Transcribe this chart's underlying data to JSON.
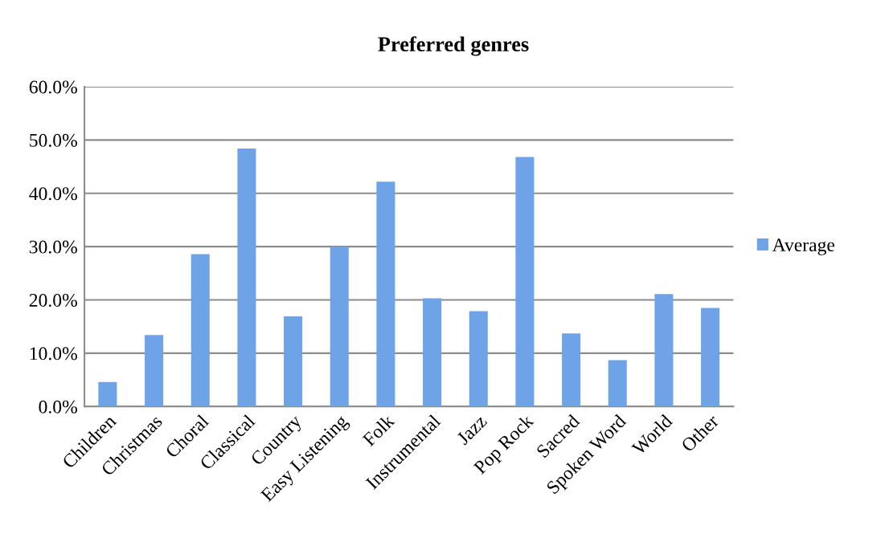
{
  "chart_data": {
    "type": "bar",
    "title": "Preferred genres",
    "categories": [
      "Children",
      "Christmas",
      "Choral",
      "Classical",
      "Country",
      "Easy Listening",
      "Folk",
      "Instrumental",
      "Jazz",
      "Pop Rock",
      "Sacred",
      "Spoken Word",
      "World",
      "Other"
    ],
    "series": [
      {
        "name": "Average",
        "color": "#6fa3e8",
        "values": [
          4.6,
          13.4,
          28.6,
          48.4,
          16.9,
          30.0,
          42.2,
          20.3,
          17.9,
          46.8,
          13.7,
          8.7,
          21.1,
          18.5
        ]
      }
    ],
    "ylim": [
      0,
      60
    ],
    "yticks": [
      {
        "value": 0,
        "label": "0.0%"
      },
      {
        "value": 10,
        "label": "10.0%"
      },
      {
        "value": 20,
        "label": "20.0%"
      },
      {
        "value": 30,
        "label": "30.0%"
      },
      {
        "value": 40,
        "label": "40.0%"
      },
      {
        "value": 50,
        "label": "50.0%"
      },
      {
        "value": 60,
        "label": "60.0%"
      }
    ],
    "grid": "y",
    "legend": "right"
  }
}
